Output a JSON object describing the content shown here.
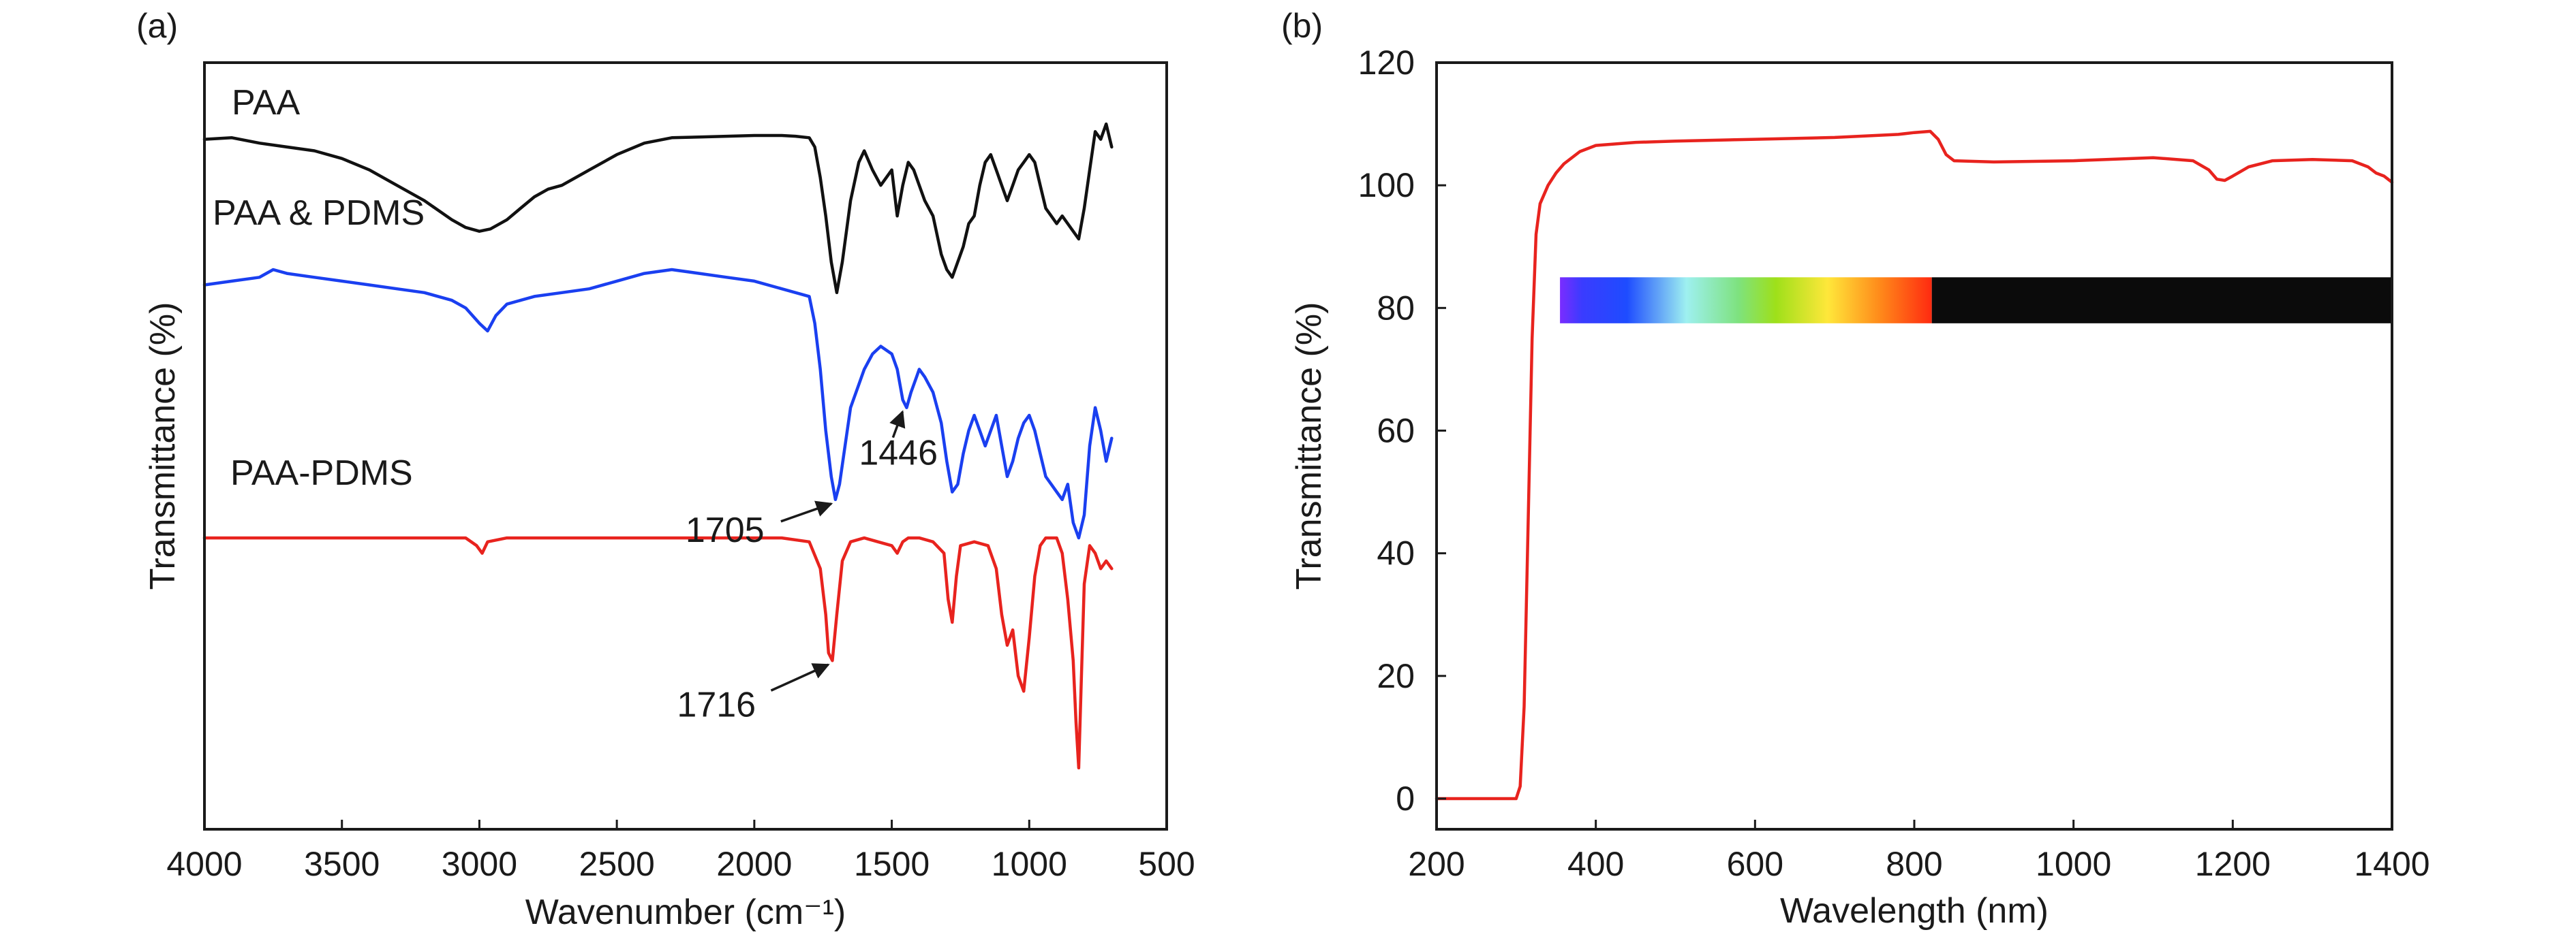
{
  "chart_data": [
    {
      "panel_label": "(a)",
      "type": "line",
      "xlabel": "Wavenumber (cm⁻¹)",
      "ylabel": "Transmittance (%)",
      "xlim": [
        4000,
        500
      ],
      "x_reversed": true,
      "x_ticks": [
        4000,
        3500,
        3000,
        2500,
        2000,
        1500,
        1000,
        500
      ],
      "y_ticks": [],
      "grid": false,
      "series": [
        {
          "name": "PAA",
          "color": "#111111",
          "x": [
            4000,
            3900,
            3800,
            3700,
            3600,
            3500,
            3400,
            3300,
            3200,
            3100,
            3050,
            3000,
            2960,
            2900,
            2850,
            2800,
            2750,
            2700,
            2600,
            2500,
            2400,
            2300,
            2200,
            2100,
            2000,
            1900,
            1850,
            1800,
            1780,
            1760,
            1740,
            1720,
            1700,
            1680,
            1650,
            1620,
            1600,
            1570,
            1540,
            1500,
            1480,
            1460,
            1440,
            1420,
            1400,
            1380,
            1350,
            1320,
            1300,
            1280,
            1260,
            1240,
            1220,
            1200,
            1180,
            1160,
            1140,
            1120,
            1100,
            1080,
            1060,
            1040,
            1020,
            1000,
            980,
            960,
            940,
            920,
            900,
            880,
            860,
            840,
            820,
            800,
            780,
            760,
            740,
            720,
            700
          ],
          "y": [
            90,
            90.2,
            89.5,
            89,
            88.5,
            87.5,
            86,
            84,
            82,
            79.5,
            78.5,
            78,
            78.3,
            79.5,
            81,
            82.5,
            83.5,
            84,
            86,
            88,
            89.5,
            90.2,
            90.3,
            90.4,
            90.5,
            90.5,
            90.4,
            90.2,
            89,
            85,
            80,
            74,
            70,
            74,
            82,
            87,
            88.5,
            86,
            84,
            86,
            80,
            84,
            87,
            86,
            84,
            82,
            80,
            75,
            73,
            72,
            74,
            76,
            79,
            80,
            84,
            87,
            88,
            86,
            84,
            82,
            84,
            86,
            87,
            88,
            87,
            84,
            81,
            80,
            79,
            80,
            79,
            78,
            77,
            81,
            86,
            91,
            90,
            92,
            89
          ]
        },
        {
          "name": "PAA & PDMS",
          "color": "#1a3ff0",
          "x": [
            4000,
            3900,
            3800,
            3750,
            3700,
            3600,
            3500,
            3400,
            3300,
            3200,
            3100,
            3050,
            3000,
            2970,
            2940,
            2900,
            2850,
            2800,
            2700,
            2600,
            2500,
            2400,
            2300,
            2200,
            2100,
            2000,
            1900,
            1850,
            1800,
            1780,
            1760,
            1740,
            1720,
            1705,
            1690,
            1670,
            1650,
            1620,
            1600,
            1570,
            1540,
            1500,
            1480,
            1460,
            1446,
            1430,
            1410,
            1400,
            1380,
            1350,
            1320,
            1300,
            1280,
            1260,
            1240,
            1220,
            1200,
            1180,
            1160,
            1140,
            1120,
            1100,
            1080,
            1060,
            1040,
            1020,
            1000,
            980,
            960,
            940,
            920,
            900,
            880,
            860,
            840,
            820,
            800,
            780,
            760,
            740,
            720,
            700
          ],
          "y": [
            71,
            71.5,
            72,
            73,
            72.5,
            72,
            71.5,
            71,
            70.5,
            70,
            69,
            68,
            66,
            65,
            67,
            68.5,
            69,
            69.5,
            70,
            70.5,
            71.5,
            72.5,
            73,
            72.5,
            72,
            71.5,
            70.5,
            70,
            69.5,
            66,
            60,
            52,
            46,
            43,
            45,
            50,
            55,
            58,
            60,
            62,
            63,
            62,
            60,
            56,
            55,
            57,
            59,
            60,
            59,
            57,
            53,
            48,
            44,
            45,
            49,
            52,
            54,
            52,
            50,
            52,
            54,
            50,
            46,
            48,
            51,
            53,
            54,
            52,
            49,
            46,
            45,
            44,
            43,
            45,
            40,
            38,
            41,
            50,
            55,
            52,
            48,
            51
          ]
        },
        {
          "name": "PAA-PDMS",
          "color": "#e8231e",
          "x": [
            4000,
            3800,
            3600,
            3400,
            3200,
            3050,
            3010,
            2990,
            2970,
            2900,
            2700,
            2500,
            2300,
            2100,
            1900,
            1800,
            1760,
            1740,
            1730,
            1716,
            1700,
            1680,
            1650,
            1600,
            1550,
            1500,
            1480,
            1460,
            1440,
            1400,
            1350,
            1310,
            1295,
            1280,
            1265,
            1250,
            1200,
            1150,
            1120,
            1100,
            1080,
            1060,
            1040,
            1020,
            1000,
            980,
            960,
            940,
            900,
            880,
            860,
            840,
            830,
            820,
            810,
            800,
            780,
            760,
            740,
            720,
            700
          ],
          "y": [
            38,
            38,
            38,
            38,
            38,
            38,
            37,
            36,
            37.5,
            38,
            38,
            38,
            38,
            38,
            38,
            37.5,
            34,
            28,
            23,
            22,
            28,
            35,
            37.5,
            38,
            37.5,
            37,
            36,
            37.5,
            38,
            38,
            37.5,
            36,
            30,
            27,
            33,
            37,
            37.5,
            37,
            34,
            28,
            24,
            26,
            20,
            18,
            25,
            33,
            37,
            38,
            38,
            36,
            30,
            22,
            14,
            8,
            20,
            32,
            37,
            36,
            34,
            35,
            34
          ]
        }
      ],
      "annotations": [
        {
          "text": "1705",
          "x": 1705,
          "series": "PAA & PDMS"
        },
        {
          "text": "1446",
          "x": 1446,
          "series": "PAA & PDMS"
        },
        {
          "text": "1716",
          "x": 1716,
          "series": "PAA-PDMS"
        }
      ]
    },
    {
      "panel_label": "(b)",
      "type": "line",
      "xlabel": "Wavelength (nm)",
      "ylabel": "Transmittance (%)",
      "xlim": [
        200,
        1400
      ],
      "ylim": [
        -5,
        120
      ],
      "x_ticks": [
        200,
        400,
        600,
        800,
        1000,
        1200,
        1400
      ],
      "y_ticks": [
        0,
        20,
        40,
        60,
        80,
        100,
        120
      ],
      "grid": false,
      "spectrum_band": {
        "x_start": 355,
        "x_end": 1400,
        "visible_end": 822,
        "y_low": 77.5,
        "y_high": 85
      },
      "series": [
        {
          "name": "",
          "color": "#e8231e",
          "x": [
            200,
            250,
            300,
            305,
            310,
            315,
            320,
            325,
            330,
            340,
            350,
            360,
            380,
            400,
            450,
            500,
            600,
            700,
            780,
            800,
            820,
            830,
            840,
            850,
            900,
            1000,
            1100,
            1150,
            1170,
            1180,
            1190,
            1200,
            1220,
            1250,
            1300,
            1350,
            1370,
            1380,
            1390,
            1400
          ],
          "y": [
            0,
            0,
            0,
            2,
            15,
            45,
            75,
            92,
            97,
            100,
            102,
            103.5,
            105.5,
            106.5,
            107,
            107.2,
            107.5,
            107.8,
            108.3,
            108.6,
            108.8,
            107.5,
            105,
            104,
            103.8,
            104,
            104.5,
            104,
            102.5,
            101,
            100.8,
            101.5,
            103,
            104,
            104.2,
            104,
            103,
            102,
            101.5,
            100.5
          ]
        }
      ]
    }
  ]
}
